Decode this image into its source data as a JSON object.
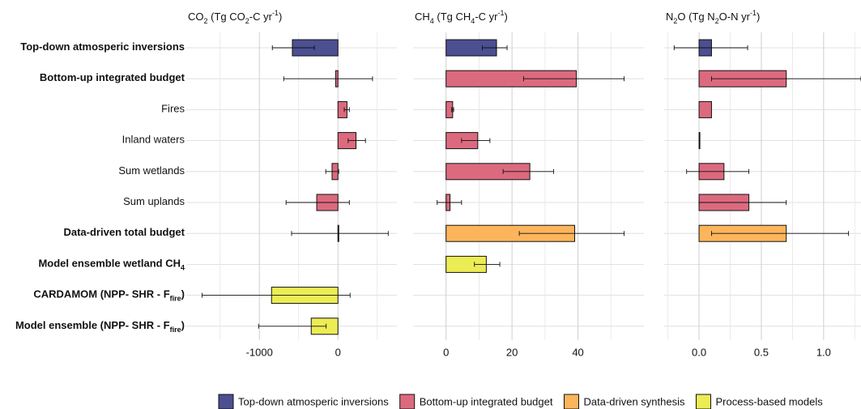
{
  "legend": [
    {
      "name": "Top-down atmosperic inversions",
      "color": "#4c4f91"
    },
    {
      "name": "Bottom-up integrated budget",
      "color": "#dc6a7e"
    },
    {
      "name": "Data-driven synthesis",
      "color": "#fdb55c"
    },
    {
      "name": "Process-based models",
      "color": "#ecec55"
    }
  ],
  "chart_data": [
    {
      "type": "hbar",
      "xlabel": [
        "CO",
        {
          "sub": "2"
        },
        " (Tg CO",
        {
          "sub": "2"
        },
        "-C yr",
        {
          "sup": "-1"
        },
        ")"
      ],
      "categories": [
        [
          "Top-down atmosperic inversions"
        ],
        [
          "Bottom-up integrated budget"
        ],
        [
          "Fires"
        ],
        [
          "Inland waters"
        ],
        [
          "Sum wetlands"
        ],
        [
          "Sum uplands"
        ],
        [
          "Data-driven total budget"
        ],
        [
          "Model ensemble wetland CH",
          {
            "sub": "4"
          }
        ],
        [
          "CARDAMOM (NPP- SHR - F",
          {
            "sub": "fire"
          },
          ")"
        ],
        [
          "Model ensemble (NPP- SHR - F",
          {
            "sub": "fire"
          },
          ")"
        ]
      ],
      "bold": [
        true,
        true,
        false,
        false,
        false,
        false,
        true,
        true,
        true,
        true
      ],
      "groups": [
        0,
        1,
        1,
        1,
        1,
        1,
        2,
        3,
        3,
        3
      ],
      "values": [
        -580,
        -30,
        115,
        230,
        -75,
        -270,
        10,
        null,
        -845,
        -340
      ],
      "lower": [
        -835,
        -690,
        80,
        130,
        -155,
        -660,
        -590,
        null,
        -1730,
        -1010
      ],
      "upper": [
        -300,
        440,
        145,
        350,
        10,
        145,
        640,
        null,
        155,
        -150
      ],
      "xlim": [
        -1930,
        750
      ],
      "xticks": [
        -1000,
        0
      ],
      "xminor_ticks": [
        -1500,
        -500,
        500
      ],
      "grid": true
    },
    {
      "type": "hbar",
      "xlabel": [
        "CH",
        {
          "sub": "4"
        },
        " (Tg CH",
        {
          "sub": "4"
        },
        "-C yr",
        {
          "sup": "-1"
        },
        ")"
      ],
      "values": [
        15.3,
        39.5,
        2,
        9.6,
        25.4,
        1.2,
        39,
        12.2,
        null,
        null
      ],
      "lower": [
        11,
        23.5,
        1.7,
        4.7,
        17.3,
        -2.7,
        22.2,
        8.6,
        null,
        null
      ],
      "upper": [
        18.5,
        54,
        2.3,
        13.3,
        32.6,
        4.7,
        54,
        16.3,
        null,
        null
      ],
      "xlim": [
        -10,
        60
      ],
      "xticks": [
        0,
        20,
        40
      ],
      "xminor_ticks": [
        10,
        30,
        50
      ],
      "grid": true
    },
    {
      "type": "hbar",
      "xlabel": [
        "N",
        {
          "sub": "2"
        },
        "O (Tg N",
        {
          "sub": "2"
        },
        "O-N yr",
        {
          "sup": "-1"
        },
        ")"
      ],
      "values": [
        0.1,
        0.7,
        0.1,
        0.005,
        0.2,
        0.4,
        0.7,
        null,
        null,
        null
      ],
      "lower": [
        -0.2,
        0.1,
        null,
        null,
        -0.1,
        0,
        0.1,
        null,
        null,
        null
      ],
      "upper": [
        0.39,
        1.3,
        null,
        null,
        0.4,
        0.7,
        1.2,
        null,
        null,
        null
      ],
      "xlim": [
        -0.28,
        1.3
      ],
      "xticks": [
        {
          "value": 0,
          "label": "0.0"
        },
        0.5,
        {
          "value": 1,
          "label": "1.0"
        }
      ],
      "xminor_ticks": [
        -0.25,
        0.25,
        0.75,
        1.25
      ],
      "grid": true
    }
  ]
}
